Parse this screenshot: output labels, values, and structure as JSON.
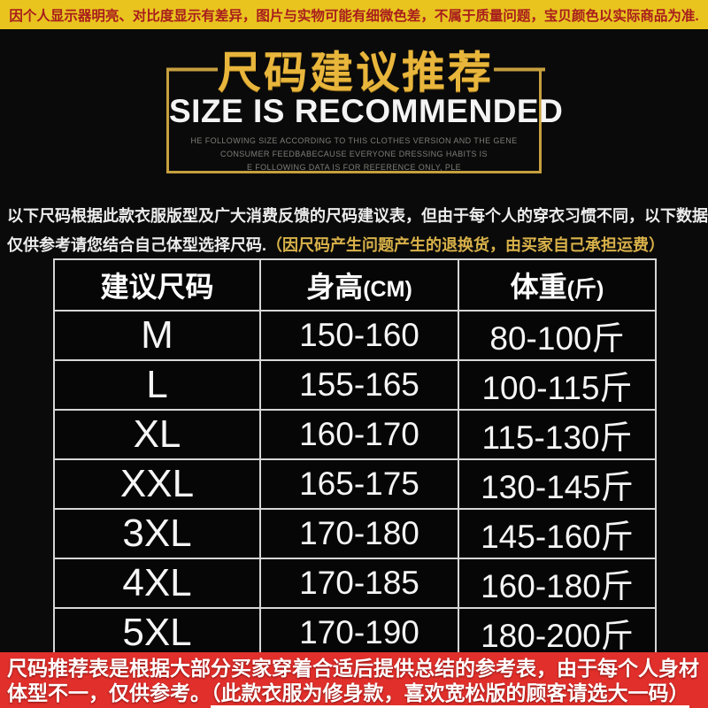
{
  "top_banner": {
    "text": "因个人显示器明亮、对比度显示有差异，图片与实物可能有细微色差，不属于质量问题，宝贝颜色以实际商品为准.",
    "bg_color": "#e9c41f",
    "text_color": "#a81d1d"
  },
  "title_block": {
    "title_cn": "尺码建议推荐",
    "title_en": "SIZE IS RECOMMENDED",
    "frame_color": "#c69f3e",
    "title_color": "#e9b63c",
    "note_lines": [
      "HE FOLLOWING SIZE ACCORDING TO THIS CLOTHES VERSION AND THE GENE",
      "CONSUMER FEEDBABECAUSE EVERYONE DRESSING HABITS IS",
      "E FOLLOWING DATA IS FOR REFERENCE ONLY, PLE"
    ]
  },
  "intro": {
    "line1": "以下尺码根据此款衣服版型及广大消费反馈的尺码建议表，但由于每个人的穿衣习惯不同，以下数据",
    "line2_white": "仅供参考请您结合自己体型选择尺码.",
    "line2_gold": "（因尺码产生问题产生的退换货，由买家自己承担运费）",
    "gold_color": "#d8b149"
  },
  "table": {
    "headers": [
      {
        "label": "建议尺码",
        "unit": ""
      },
      {
        "label": "身高",
        "unit": "(CM)"
      },
      {
        "label": "体重",
        "unit": "(斤)"
      }
    ],
    "rows": [
      [
        "M",
        "150-160",
        "80-100斤"
      ],
      [
        "L",
        "155-165",
        "100-115斤"
      ],
      [
        "XL",
        "160-170",
        "115-130斤"
      ],
      [
        "XXL",
        "165-175",
        "130-145斤"
      ],
      [
        "3XL",
        "170-180",
        "145-160斤"
      ],
      [
        "4XL",
        "170-185",
        "160-180斤"
      ],
      [
        "5XL",
        "170-190",
        "180-200斤"
      ]
    ],
    "border_color": "#d6d6d6"
  },
  "bottom_banner": {
    "line1": "尺码推荐表是根据大部分买家穿着合适后提供总结的参考表，由于每个人身材",
    "line2_prefix": "体型不一，仅供参考。",
    "line2_underlined": "（此款衣服为修身款，喜欢宽松版的顾客请选大一码）",
    "bg_color": "#e1302c"
  }
}
